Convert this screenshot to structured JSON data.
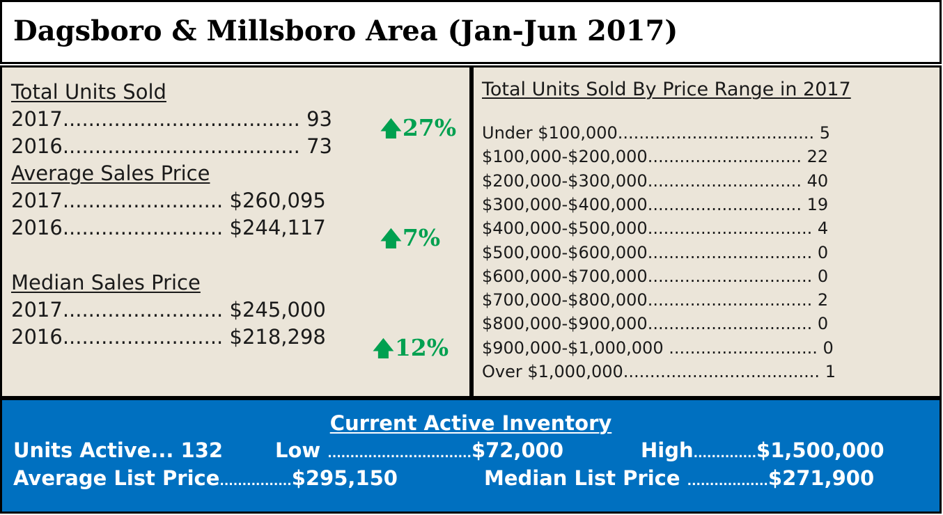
{
  "title": "Dagsboro & Millsboro Area (Jan-Jun 2017)",
  "colors": {
    "panel_bg": "#ebe5d9",
    "up_arrow": "#00a050",
    "inventory_bg": "#0070c0"
  },
  "left": {
    "total_units": {
      "heading": "Total Units Sold",
      "rows": [
        {
          "year": "2017",
          "dots": ".....................................",
          "value": "93"
        },
        {
          "year": "2016",
          "dots": ".....................................",
          "value": "73"
        }
      ],
      "change_icon": "arrow-up-icon",
      "change_arrow": "🡅",
      "change": "27%"
    },
    "avg_price": {
      "heading": "Average Sales Price",
      "rows": [
        {
          "year": "2017",
          "dots": ".........................",
          "value": "$260,095"
        },
        {
          "year": "2016",
          "dots": ".........................",
          "value": "$244,117"
        }
      ],
      "change_arrow": "🡅",
      "change": "7%"
    },
    "median_price": {
      "heading": "Median Sales Price",
      "rows": [
        {
          "year": "2017",
          "dots": ".........................",
          "value": "$245,000"
        },
        {
          "year": "2016",
          "dots": ".........................",
          "value": "$218,298"
        }
      ],
      "change_arrow": "🡅",
      "change": "12%"
    }
  },
  "right": {
    "heading": "Total Units Sold By Price Range in 2017",
    "ranges": [
      {
        "label": "Under $100,000",
        "dots": ".....................................",
        "value": "5"
      },
      {
        "label": "$100,000-$200,000",
        "dots": ".............................",
        "value": "22"
      },
      {
        "label": "$200,000-$300,000",
        "dots": ".............................",
        "value": "40"
      },
      {
        "label": "$300,000-$400,000",
        "dots": ".............................",
        "value": "19"
      },
      {
        "label": "$400,000-$500,000",
        "dots": "...............................",
        "value": "4"
      },
      {
        "label": "$500,000-$600,000",
        "dots": "...............................",
        "value": "0"
      },
      {
        "label": "$600,000-$700,000",
        "dots": "...............................",
        "value": "0"
      },
      {
        "label": "$700,000-$800,000",
        "dots": "...............................",
        "value": "2"
      },
      {
        "label": "$800,000-$900,000",
        "dots": "...............................",
        "value": "0"
      },
      {
        "label": "$900,000-$1,000,000 ",
        "dots": "............................",
        "value": "0"
      },
      {
        "label": "Over $1,000,000",
        "dots": ".....................................",
        "value": "1"
      }
    ]
  },
  "inventory": {
    "heading": "Current Active Inventory",
    "units_label": "Units Active",
    "units_dots": "...",
    "units_value": "132",
    "low_label": "Low ",
    "low_dots": "................................",
    "low_value": "$72,000",
    "high_label": "High",
    "high_dots": "..............",
    "high_value": "$1,500,000",
    "avg_label": "Average List Price",
    "avg_dots": "................",
    "avg_value": "$295,150",
    "median_label": "Median List Price ",
    "median_dots": "..................",
    "median_value": "$271,900"
  }
}
